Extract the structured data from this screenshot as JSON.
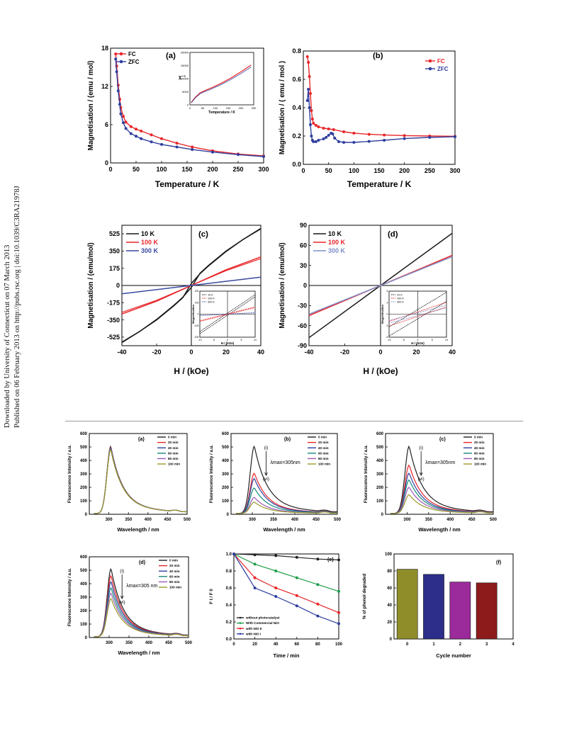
{
  "side_notes": {
    "line1": "Downloaded by University of Connecticut on 07 March 2013",
    "line2": "Published on 06 February 2013 on http://pubs.rsc.org | doi:10.1039/C3RA21978J"
  },
  "colors": {
    "black": "#1a1a1a",
    "red": "#e8262a",
    "blue": "#2f3f9e",
    "grey": "#7f8fc9"
  },
  "chart_data": [
    {
      "id": "mag-a",
      "panel": "(a)",
      "type": "line",
      "xlabel": "Temperature / K",
      "ylabel": "Magnetisation  / (emu / mol)",
      "xlim": [
        0,
        300
      ],
      "ylim": [
        0,
        18
      ],
      "xticks": [
        "0",
        "50",
        "100",
        "150",
        "200",
        "250",
        "300"
      ],
      "yticks": [
        "0",
        "6",
        "12",
        "18"
      ],
      "legend": "top-left",
      "series": [
        {
          "name": "FC",
          "color": "#e8262a",
          "x": [
            10,
            12,
            15,
            18,
            20,
            25,
            30,
            40,
            50,
            60,
            80,
            100,
            130,
            160,
            200,
            250,
            300
          ],
          "y": [
            17.1,
            15.2,
            12.2,
            10.0,
            8.7,
            7.3,
            6.4,
            5.7,
            5.3,
            5.0,
            4.4,
            3.8,
            3.1,
            2.5,
            1.9,
            1.4,
            1.1
          ]
        },
        {
          "name": "ZFC",
          "color": "#2f3f9e",
          "x": [
            10,
            12,
            15,
            18,
            20,
            25,
            30,
            40,
            50,
            60,
            80,
            100,
            130,
            160,
            200,
            250,
            300
          ],
          "y": [
            16.3,
            14.3,
            11.3,
            9.2,
            7.7,
            6.3,
            5.4,
            4.6,
            4.2,
            3.8,
            3.3,
            2.9,
            2.5,
            2.1,
            1.7,
            1.3,
            1.0
          ]
        }
      ],
      "inset": {
        "ylabel": "χ⁻¹",
        "xlabel": "Temperature / K",
        "xlim": [
          0,
          250
        ],
        "ylim": [
          0,
          20000
        ],
        "xticks": [
          "0",
          "50",
          "100",
          "150",
          "200",
          "250"
        ],
        "yticks": [
          "0",
          "5000",
          "10000",
          "15000",
          "20000"
        ],
        "x": [
          5,
          20,
          40,
          60,
          80,
          100,
          130,
          160,
          200,
          240
        ],
        "y": [
          900,
          2800,
          4600,
          5500,
          6300,
          7200,
          8600,
          10200,
          12600,
          15200
        ]
      }
    },
    {
      "id": "mag-b",
      "panel": "(b)",
      "type": "line",
      "xlabel": "Temperature / K",
      "ylabel": "Magnetisation  / ( emu / mol )",
      "xlim": [
        0,
        300
      ],
      "ylim": [
        0.0,
        0.8
      ],
      "xticks": [
        "0",
        "50",
        "100",
        "150",
        "200",
        "250",
        "300"
      ],
      "yticks": [
        "0.0",
        "0.2",
        "0.4",
        "0.6",
        "0.8"
      ],
      "legend": "top-right",
      "series": [
        {
          "name": "FC",
          "color": "#e8262a",
          "x": [
            8,
            10,
            12,
            14,
            16,
            18,
            20,
            25,
            30,
            40,
            50,
            60,
            80,
            100,
            130,
            160,
            200,
            250,
            300
          ],
          "y": [
            0.76,
            0.72,
            0.62,
            0.5,
            0.38,
            0.32,
            0.29,
            0.275,
            0.265,
            0.255,
            0.25,
            0.245,
            0.23,
            0.22,
            0.212,
            0.207,
            0.203,
            0.2,
            0.198
          ]
        },
        {
          "name": "ZFC",
          "color": "#2f3f9e",
          "x": [
            8,
            10,
            12,
            14,
            16,
            18,
            20,
            25,
            30,
            40,
            45,
            50,
            55,
            58,
            62,
            70,
            80,
            100,
            130,
            160,
            200,
            250,
            300
          ],
          "y": [
            0.45,
            0.53,
            0.4,
            0.28,
            0.2,
            0.17,
            0.16,
            0.16,
            0.17,
            0.18,
            0.19,
            0.205,
            0.22,
            0.215,
            0.185,
            0.16,
            0.155,
            0.155,
            0.162,
            0.17,
            0.182,
            0.19,
            0.195
          ]
        }
      ]
    },
    {
      "id": "mh-c",
      "panel": "(c)",
      "type": "line",
      "xlabel": "H / (kOe)",
      "ylabel": "Magnetisation  / (emu/mol)",
      "xlim": [
        -40,
        40
      ],
      "ylim": [
        -612,
        612
      ],
      "xticks": [
        "-40",
        "-20",
        "0",
        "20",
        "40"
      ],
      "yticks": [
        "-525",
        "-350",
        "-175",
        "0",
        "175",
        "350",
        "525"
      ],
      "legend": "top-left",
      "series": [
        {
          "name": "10 K",
          "color": "#1a1a1a",
          "x": [
            -40,
            -30,
            -20,
            -10,
            -5,
            0,
            5,
            10,
            20,
            30,
            40
          ],
          "y": [
            -575,
            -470,
            -345,
            -200,
            -120,
            -20,
            125,
            205,
            350,
            470,
            580
          ]
        },
        {
          "name": "100 K",
          "color": "#e8262a",
          "x": [
            -40,
            -20,
            0,
            20,
            40
          ],
          "y": [
            -290,
            -160,
            0,
            160,
            290
          ]
        },
        {
          "name": "300 K",
          "color": "#3a4aa0",
          "x": [
            -40,
            0,
            40
          ],
          "y": [
            -85,
            0,
            85
          ]
        }
      ],
      "inset": {
        "xlabel": "H / (kOe)",
        "ylabel": "Magnetisation",
        "legend": [
          "10 K",
          "100 K",
          "300 K"
        ],
        "xlim": [
          -10,
          10
        ],
        "ylim": [
          -200,
          200
        ],
        "xticks": [
          "-10",
          "-5",
          "0",
          "5",
          "10"
        ],
        "yticks": [
          "-200",
          "-100",
          "0",
          "100",
          "200"
        ]
      }
    },
    {
      "id": "mh-d",
      "panel": "(d)",
      "type": "line",
      "xlabel": "H / (kOe)",
      "ylabel": "Magnetisation / (emu/mol)",
      "xlim": [
        -40,
        40
      ],
      "ylim": [
        -90,
        90
      ],
      "xticks": [
        "-40",
        "-20",
        "0",
        "20",
        "40"
      ],
      "yticks": [
        "-90",
        "-60",
        "-30",
        "0",
        "30",
        "60",
        "90"
      ],
      "legend": "top-left",
      "series": [
        {
          "name": "10 K",
          "color": "#1a1a1a",
          "x": [
            -40,
            0,
            40
          ],
          "y": [
            -78,
            0,
            78
          ]
        },
        {
          "name": "100 K",
          "color": "#e8262a",
          "x": [
            -40,
            0,
            40
          ],
          "y": [
            -45,
            0,
            45
          ]
        },
        {
          "name": "300 K",
          "color": "#7f8fc9",
          "x": [
            -40,
            0,
            40
          ],
          "y": [
            -43,
            0,
            43
          ]
        }
      ],
      "inset": {
        "xlabel": "H / (kOe)",
        "ylabel": "Magnetisation",
        "legend": [
          "10 K",
          "100 K",
          "300 K"
        ],
        "xlim": [
          -10,
          10
        ],
        "ylim": [
          -6,
          6
        ],
        "xticks": [
          "-10",
          "-5",
          "0",
          "5",
          "10"
        ],
        "yticks": [
          "-6",
          "-3",
          "0",
          "3",
          "6"
        ]
      }
    },
    {
      "id": "fl-a",
      "panel": "(a)",
      "type": "line",
      "xlabel": "Wavelength  / nm",
      "ylabel": "Fluorescence Intensity / a.u.",
      "xlim": [
        250,
        500
      ],
      "ylim": [
        0,
        600
      ],
      "xticks": [
        "300",
        "350",
        "400",
        "450",
        "500"
      ],
      "yticks": [
        "0",
        "100",
        "200",
        "300",
        "400",
        "500",
        "600"
      ],
      "peak_wavelength": 305,
      "legend": "top-right",
      "series": [
        {
          "name": "0 min",
          "color": "#222222",
          "peak": 500
        },
        {
          "name": "20 min",
          "color": "#e8262a",
          "peak": 495
        },
        {
          "name": "40 min",
          "color": "#2f3f9e",
          "peak": 490
        },
        {
          "name": "60 min",
          "color": "#17897a",
          "peak": 485
        },
        {
          "name": "80 min",
          "color": "#9b59b6",
          "peak": 480
        },
        {
          "name": "100 min",
          "color": "#9a9a2a",
          "peak": 475
        }
      ]
    },
    {
      "id": "fl-b",
      "panel": "(b)",
      "type": "line",
      "xlabel": "Wavelength  / nm",
      "ylabel": "Fluorescence Intensity / a.u.",
      "xlim": [
        250,
        500
      ],
      "ylim": [
        0,
        600
      ],
      "xticks": [
        "300",
        "350",
        "400",
        "450",
        "500"
      ],
      "yticks": [
        "0",
        "100",
        "200",
        "300",
        "400",
        "500",
        "600"
      ],
      "peak_wavelength": 305,
      "annotation": "λmax=305nm",
      "arrow_top": "(i)",
      "arrow_bottom": "(vi)",
      "legend": "top-right",
      "series": [
        {
          "name": "0 min",
          "color": "#222222",
          "peak": 500
        },
        {
          "name": "20 min",
          "color": "#e8262a",
          "peak": 300
        },
        {
          "name": "40 min",
          "color": "#2f3f9e",
          "peak": 260
        },
        {
          "name": "60 min",
          "color": "#17897a",
          "peak": 190
        },
        {
          "name": "80 min",
          "color": "#9b59b6",
          "peak": 120
        },
        {
          "name": "100 min",
          "color": "#9a9a2a",
          "peak": 85
        }
      ]
    },
    {
      "id": "fl-c",
      "panel": "(c)",
      "type": "line",
      "xlabel": "Wavelength  / nm",
      "ylabel": "Fluorescence Intensity / a.u.",
      "xlim": [
        250,
        500
      ],
      "ylim": [
        0,
        600
      ],
      "xticks": [
        "300",
        "350",
        "400",
        "450",
        "500"
      ],
      "yticks": [
        "0",
        "100",
        "200",
        "300",
        "400",
        "500",
        "600"
      ],
      "peak_wavelength": 305,
      "annotation": "λmax=305nm",
      "arrow_top": "(i)",
      "arrow_bottom": "(vi)",
      "legend": "top-right",
      "series": [
        {
          "name": "0 min",
          "color": "#222222",
          "peak": 500
        },
        {
          "name": "20 min",
          "color": "#e8262a",
          "peak": 360
        },
        {
          "name": "40 min",
          "color": "#2f3f9e",
          "peak": 300
        },
        {
          "name": "60 min",
          "color": "#17897a",
          "peak": 250
        },
        {
          "name": "80 min",
          "color": "#9b59b6",
          "peak": 195
        },
        {
          "name": "100 min",
          "color": "#9a9a2a",
          "peak": 140
        }
      ]
    },
    {
      "id": "fl-d",
      "panel": "(d)",
      "type": "line",
      "xlabel": "Wavelength  / nm",
      "ylabel": "Fluorescence Intensity / a.u.",
      "xlim": [
        250,
        500
      ],
      "ylim": [
        0,
        600
      ],
      "xticks": [
        "300",
        "350",
        "400",
        "450",
        "500"
      ],
      "yticks": [
        "0",
        "100",
        "200",
        "300",
        "400",
        "500",
        "600"
      ],
      "peak_wavelength": 305,
      "annotation": "λmax=305 nm",
      "arrow_top": "(i)",
      "arrow_bottom": "(vi)",
      "legend": "top-right",
      "series": [
        {
          "name": "0 min",
          "color": "#222222",
          "peak": 505
        },
        {
          "name": "20 min",
          "color": "#e8262a",
          "peak": 455
        },
        {
          "name": "40 min",
          "color": "#2f3f9e",
          "peak": 410
        },
        {
          "name": "60 min",
          "color": "#17897a",
          "peak": 365
        },
        {
          "name": "80 min",
          "color": "#9b59b6",
          "peak": 325
        },
        {
          "name": "100 min",
          "color": "#9a9a2a",
          "peak": 285
        }
      ]
    },
    {
      "id": "fl-e",
      "panel": "(e)",
      "type": "line",
      "xlabel": "Time / min",
      "ylabel": "F t / F 0",
      "xlim": [
        0,
        100
      ],
      "ylim": [
        0.0,
        1.0
      ],
      "xticks": [
        "0",
        "20",
        "40",
        "60",
        "80",
        "100"
      ],
      "yticks": [
        "0.0",
        "0.2",
        "0.4",
        "0.6",
        "0.8",
        "1.0"
      ],
      "legend": "bottom-left",
      "series": [
        {
          "name": "without photocatalyst",
          "color": "#222222",
          "x": [
            0,
            20,
            40,
            60,
            80,
            100
          ],
          "y": [
            1.0,
            0.99,
            0.98,
            0.96,
            0.94,
            0.93
          ]
        },
        {
          "name": "With Commercial NiO",
          "color": "#1f9e4a",
          "x": [
            0,
            20,
            40,
            60,
            80,
            100
          ],
          "y": [
            1.0,
            0.88,
            0.8,
            0.72,
            0.64,
            0.56
          ]
        },
        {
          "name": "with NiO II",
          "color": "#e8262a",
          "x": [
            0,
            20,
            40,
            60,
            80,
            100
          ],
          "y": [
            1.0,
            0.72,
            0.6,
            0.51,
            0.41,
            0.31
          ]
        },
        {
          "name": "with NiO I",
          "color": "#2f3f9e",
          "x": [
            0,
            20,
            40,
            60,
            80,
            100
          ],
          "y": [
            1.0,
            0.6,
            0.5,
            0.39,
            0.27,
            0.18
          ]
        }
      ]
    },
    {
      "id": "fl-f",
      "panel": "(f)",
      "type": "bar",
      "xlabel": "Cycle number",
      "ylabel": "% of phenol degraded",
      "xlim": [
        -0.5,
        4
      ],
      "ylim": [
        0,
        100
      ],
      "xticks": [
        "0",
        "1",
        "2",
        "3",
        "4"
      ],
      "yticks": [
        "0",
        "20",
        "40",
        "60",
        "80",
        "100"
      ],
      "categories": [
        "0",
        "1",
        "2",
        "3"
      ],
      "values": [
        82,
        76,
        67,
        66
      ],
      "colors": [
        "#8f8d2a",
        "#2c2e8a",
        "#9b2a9b",
        "#8e1b1b"
      ]
    }
  ]
}
